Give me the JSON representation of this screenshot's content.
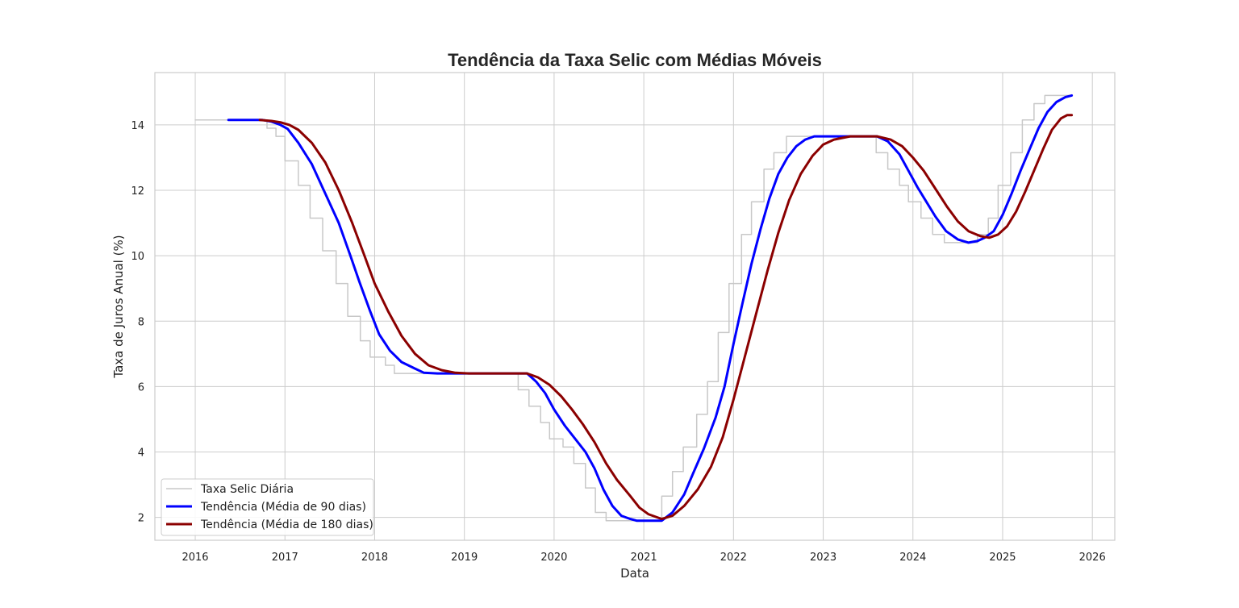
{
  "chart_data": {
    "type": "line",
    "title": "Tendência da Taxa Selic com Médias Móveis",
    "xlabel": "Data",
    "ylabel": "Taxa de Juros Anual (%)",
    "xlim": [
      2015.55,
      2026.25
    ],
    "ylim": [
      1.3,
      15.6
    ],
    "x_ticks": [
      "2016",
      "2017",
      "2018",
      "2019",
      "2020",
      "2021",
      "2022",
      "2023",
      "2024",
      "2025",
      "2026"
    ],
    "y_ticks": [
      "2",
      "4",
      "6",
      "8",
      "10",
      "12",
      "14"
    ],
    "grid": true,
    "legend_position": "lower-left",
    "colors": {
      "daily": "#c8c8c8",
      "ma90": "#0000ff",
      "ma180": "#8b0000",
      "grid": "#cccccc",
      "frame": "#cccccc"
    },
    "series": [
      {
        "name": "Taxa Selic Diária",
        "style": "step",
        "points": [
          [
            2016.0,
            14.15
          ],
          [
            2016.8,
            14.15
          ],
          [
            2016.8,
            13.9
          ],
          [
            2016.9,
            13.9
          ],
          [
            2016.9,
            13.65
          ],
          [
            2017.0,
            13.65
          ],
          [
            2017.0,
            12.9
          ],
          [
            2017.15,
            12.9
          ],
          [
            2017.15,
            12.15
          ],
          [
            2017.28,
            12.15
          ],
          [
            2017.28,
            11.15
          ],
          [
            2017.42,
            11.15
          ],
          [
            2017.42,
            10.15
          ],
          [
            2017.57,
            10.15
          ],
          [
            2017.57,
            9.15
          ],
          [
            2017.7,
            9.15
          ],
          [
            2017.7,
            8.15
          ],
          [
            2017.84,
            8.15
          ],
          [
            2017.84,
            7.4
          ],
          [
            2017.95,
            7.4
          ],
          [
            2017.95,
            6.9
          ],
          [
            2018.12,
            6.9
          ],
          [
            2018.12,
            6.65
          ],
          [
            2018.22,
            6.65
          ],
          [
            2018.22,
            6.4
          ],
          [
            2019.6,
            6.4
          ],
          [
            2019.6,
            5.9
          ],
          [
            2019.72,
            5.9
          ],
          [
            2019.72,
            5.4
          ],
          [
            2019.85,
            5.4
          ],
          [
            2019.85,
            4.9
          ],
          [
            2019.95,
            4.9
          ],
          [
            2019.95,
            4.4
          ],
          [
            2020.1,
            4.4
          ],
          [
            2020.1,
            4.15
          ],
          [
            2020.22,
            4.15
          ],
          [
            2020.22,
            3.65
          ],
          [
            2020.35,
            3.65
          ],
          [
            2020.35,
            2.9
          ],
          [
            2020.46,
            2.9
          ],
          [
            2020.46,
            2.15
          ],
          [
            2020.58,
            2.15
          ],
          [
            2020.58,
            1.9
          ],
          [
            2021.2,
            1.9
          ],
          [
            2021.2,
            2.65
          ],
          [
            2021.32,
            2.65
          ],
          [
            2021.32,
            3.4
          ],
          [
            2021.44,
            3.4
          ],
          [
            2021.44,
            4.15
          ],
          [
            2021.59,
            4.15
          ],
          [
            2021.59,
            5.15
          ],
          [
            2021.71,
            5.15
          ],
          [
            2021.71,
            6.15
          ],
          [
            2021.83,
            6.15
          ],
          [
            2021.83,
            7.65
          ],
          [
            2021.95,
            7.65
          ],
          [
            2021.95,
            9.15
          ],
          [
            2022.09,
            9.15
          ],
          [
            2022.09,
            10.65
          ],
          [
            2022.2,
            10.65
          ],
          [
            2022.2,
            11.65
          ],
          [
            2022.34,
            11.65
          ],
          [
            2022.34,
            12.65
          ],
          [
            2022.45,
            12.65
          ],
          [
            2022.45,
            13.15
          ],
          [
            2022.59,
            13.15
          ],
          [
            2022.59,
            13.65
          ],
          [
            2023.59,
            13.65
          ],
          [
            2023.59,
            13.15
          ],
          [
            2023.72,
            13.15
          ],
          [
            2023.72,
            12.65
          ],
          [
            2023.85,
            12.65
          ],
          [
            2023.85,
            12.15
          ],
          [
            2023.95,
            12.15
          ],
          [
            2023.95,
            11.65
          ],
          [
            2024.09,
            11.65
          ],
          [
            2024.09,
            11.15
          ],
          [
            2024.22,
            11.15
          ],
          [
            2024.22,
            10.65
          ],
          [
            2024.35,
            10.65
          ],
          [
            2024.35,
            10.4
          ],
          [
            2024.72,
            10.4
          ],
          [
            2024.72,
            10.65
          ],
          [
            2024.84,
            10.65
          ],
          [
            2024.84,
            11.15
          ],
          [
            2024.95,
            11.15
          ],
          [
            2024.95,
            12.15
          ],
          [
            2025.09,
            12.15
          ],
          [
            2025.09,
            13.15
          ],
          [
            2025.22,
            13.15
          ],
          [
            2025.22,
            14.15
          ],
          [
            2025.35,
            14.15
          ],
          [
            2025.35,
            14.65
          ],
          [
            2025.47,
            14.65
          ],
          [
            2025.47,
            14.9
          ],
          [
            2025.77,
            14.9
          ]
        ]
      },
      {
        "name": "Tendência (Média de 90 dias)",
        "style": "line",
        "points": [
          [
            2016.37,
            14.15
          ],
          [
            2016.75,
            14.15
          ],
          [
            2016.85,
            14.1
          ],
          [
            2016.95,
            14.0
          ],
          [
            2017.03,
            13.88
          ],
          [
            2017.15,
            13.45
          ],
          [
            2017.3,
            12.8
          ],
          [
            2017.45,
            11.9
          ],
          [
            2017.6,
            11.0
          ],
          [
            2017.73,
            10.0
          ],
          [
            2017.83,
            9.2
          ],
          [
            2017.95,
            8.3
          ],
          [
            2018.05,
            7.6
          ],
          [
            2018.17,
            7.1
          ],
          [
            2018.3,
            6.75
          ],
          [
            2018.45,
            6.55
          ],
          [
            2018.55,
            6.42
          ],
          [
            2018.7,
            6.4
          ],
          [
            2019.7,
            6.4
          ],
          [
            2019.8,
            6.15
          ],
          [
            2019.9,
            5.8
          ],
          [
            2020.0,
            5.3
          ],
          [
            2020.12,
            4.8
          ],
          [
            2020.25,
            4.35
          ],
          [
            2020.35,
            4.0
          ],
          [
            2020.45,
            3.5
          ],
          [
            2020.55,
            2.85
          ],
          [
            2020.65,
            2.35
          ],
          [
            2020.75,
            2.05
          ],
          [
            2020.85,
            1.95
          ],
          [
            2020.92,
            1.9
          ],
          [
            2021.2,
            1.9
          ],
          [
            2021.32,
            2.15
          ],
          [
            2021.45,
            2.7
          ],
          [
            2021.55,
            3.35
          ],
          [
            2021.67,
            4.1
          ],
          [
            2021.8,
            5.05
          ],
          [
            2021.9,
            6.0
          ],
          [
            2022.0,
            7.3
          ],
          [
            2022.1,
            8.55
          ],
          [
            2022.2,
            9.75
          ],
          [
            2022.3,
            10.8
          ],
          [
            2022.4,
            11.75
          ],
          [
            2022.5,
            12.5
          ],
          [
            2022.6,
            13.0
          ],
          [
            2022.7,
            13.35
          ],
          [
            2022.8,
            13.55
          ],
          [
            2022.9,
            13.65
          ],
          [
            2023.6,
            13.65
          ],
          [
            2023.72,
            13.5
          ],
          [
            2023.85,
            13.1
          ],
          [
            2023.95,
            12.6
          ],
          [
            2024.05,
            12.1
          ],
          [
            2024.15,
            11.65
          ],
          [
            2024.25,
            11.2
          ],
          [
            2024.37,
            10.75
          ],
          [
            2024.5,
            10.5
          ],
          [
            2024.62,
            10.4
          ],
          [
            2024.72,
            10.45
          ],
          [
            2024.8,
            10.55
          ],
          [
            2024.9,
            10.75
          ],
          [
            2025.0,
            11.25
          ],
          [
            2025.1,
            11.9
          ],
          [
            2025.2,
            12.6
          ],
          [
            2025.3,
            13.25
          ],
          [
            2025.4,
            13.9
          ],
          [
            2025.5,
            14.4
          ],
          [
            2025.6,
            14.7
          ],
          [
            2025.7,
            14.85
          ],
          [
            2025.77,
            14.9
          ]
        ]
      },
      {
        "name": "Tendência (Média de 180 dias)",
        "style": "line",
        "points": [
          [
            2016.72,
            14.15
          ],
          [
            2016.85,
            14.12
          ],
          [
            2016.95,
            14.08
          ],
          [
            2017.05,
            14.0
          ],
          [
            2017.15,
            13.85
          ],
          [
            2017.3,
            13.45
          ],
          [
            2017.45,
            12.85
          ],
          [
            2017.6,
            12.0
          ],
          [
            2017.75,
            11.0
          ],
          [
            2017.88,
            10.05
          ],
          [
            2018.0,
            9.15
          ],
          [
            2018.15,
            8.3
          ],
          [
            2018.3,
            7.55
          ],
          [
            2018.45,
            7.0
          ],
          [
            2018.6,
            6.65
          ],
          [
            2018.75,
            6.5
          ],
          [
            2018.9,
            6.42
          ],
          [
            2019.05,
            6.4
          ],
          [
            2019.7,
            6.4
          ],
          [
            2019.82,
            6.28
          ],
          [
            2019.95,
            6.05
          ],
          [
            2020.08,
            5.7
          ],
          [
            2020.2,
            5.3
          ],
          [
            2020.32,
            4.85
          ],
          [
            2020.45,
            4.3
          ],
          [
            2020.58,
            3.65
          ],
          [
            2020.7,
            3.15
          ],
          [
            2020.85,
            2.65
          ],
          [
            2020.95,
            2.3
          ],
          [
            2021.05,
            2.1
          ],
          [
            2021.2,
            1.95
          ],
          [
            2021.32,
            2.05
          ],
          [
            2021.45,
            2.35
          ],
          [
            2021.6,
            2.85
          ],
          [
            2021.75,
            3.55
          ],
          [
            2021.88,
            4.45
          ],
          [
            2022.0,
            5.6
          ],
          [
            2022.12,
            6.85
          ],
          [
            2022.25,
            8.2
          ],
          [
            2022.38,
            9.55
          ],
          [
            2022.5,
            10.7
          ],
          [
            2022.62,
            11.7
          ],
          [
            2022.75,
            12.5
          ],
          [
            2022.88,
            13.05
          ],
          [
            2023.0,
            13.4
          ],
          [
            2023.12,
            13.55
          ],
          [
            2023.3,
            13.65
          ],
          [
            2023.6,
            13.65
          ],
          [
            2023.75,
            13.55
          ],
          [
            2023.88,
            13.35
          ],
          [
            2024.0,
            13.0
          ],
          [
            2024.12,
            12.6
          ],
          [
            2024.25,
            12.05
          ],
          [
            2024.38,
            11.5
          ],
          [
            2024.5,
            11.05
          ],
          [
            2024.62,
            10.75
          ],
          [
            2024.75,
            10.6
          ],
          [
            2024.85,
            10.55
          ],
          [
            2024.95,
            10.65
          ],
          [
            2025.05,
            10.9
          ],
          [
            2025.15,
            11.35
          ],
          [
            2025.25,
            11.95
          ],
          [
            2025.35,
            12.6
          ],
          [
            2025.45,
            13.25
          ],
          [
            2025.55,
            13.85
          ],
          [
            2025.65,
            14.2
          ],
          [
            2025.72,
            14.3
          ],
          [
            2025.77,
            14.3
          ]
        ]
      }
    ]
  }
}
